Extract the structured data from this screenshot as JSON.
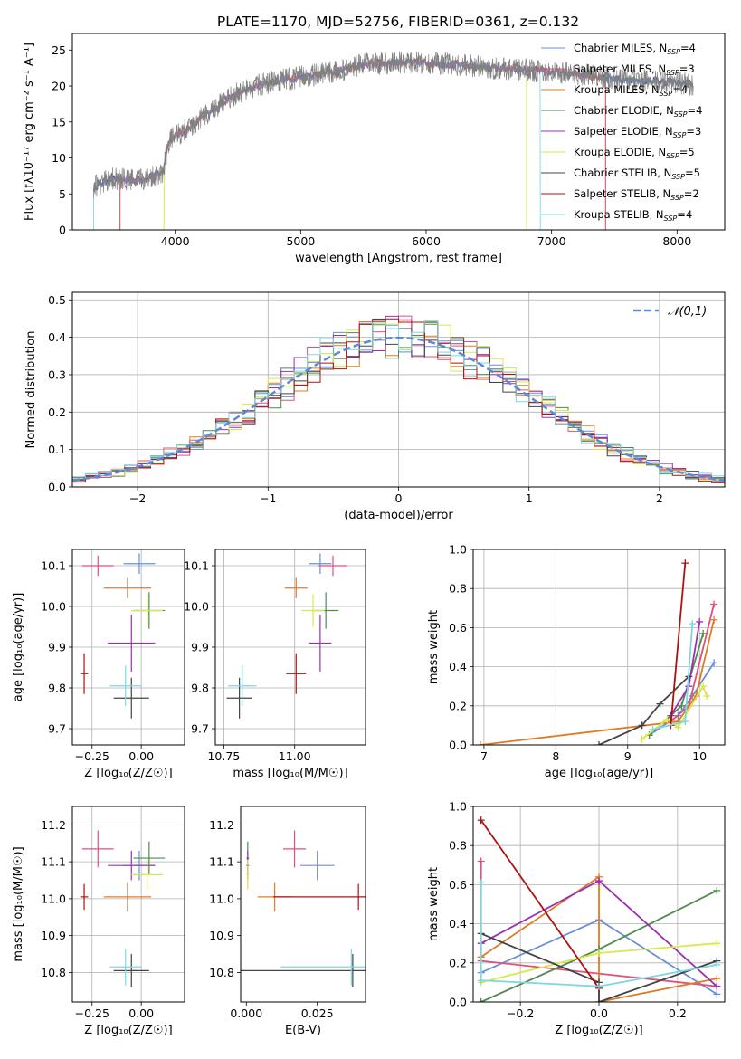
{
  "figure_title": "PLATE=1170, MJD=52756, FIBERID=0361, z=0.132",
  "colors": {
    "chabrier_miles": "#6a8fd8",
    "salpeter_miles": "#e0507a",
    "kroupa_miles": "#e07b24",
    "chabrier_elodie": "#4e8a50",
    "salpeter_elodie": "#9b30b0",
    "kroupa_elodie": "#d8e84a",
    "chabrier_stelib": "#444444",
    "salpeter_stelib": "#b01010",
    "kroupa_stelib": "#7fd6e0",
    "gauss": "#5b8ad6",
    "data_spectrum": "#808080"
  },
  "legend_spectrum": [
    {
      "model": "Chabrier MILES",
      "n": "4"
    },
    {
      "model": "Salpeter MILES",
      "n": "3"
    },
    {
      "model": "Kroupa MILES",
      "n": "4"
    },
    {
      "model": "Chabrier ELODIE",
      "n": "4"
    },
    {
      "model": "Salpeter ELODIE",
      "n": "3"
    },
    {
      "model": "Kroupa ELODIE",
      "n": "5"
    },
    {
      "model": "Chabrier STELIB",
      "n": "5"
    },
    {
      "model": "Salpeter STELIB",
      "n": "2"
    },
    {
      "model": "Kroupa STELIB",
      "n": "4"
    }
  ],
  "legend_hist": "𝒩(0,1)",
  "chart_data": [
    {
      "type": "line",
      "id": "spectrum",
      "xlabel": "wavelength [Angstrom, rest frame]",
      "ylabel": "Flux [fλ10⁻¹⁷ erg cm⁻² s⁻¹ A⁻¹]",
      "xlim": [
        3180,
        8380
      ],
      "ylim": [
        0,
        27.3
      ],
      "xticks": [
        4000,
        5000,
        6000,
        7000,
        8000
      ],
      "yticks": [
        0,
        5,
        10,
        15,
        20,
        25
      ],
      "grid": false,
      "continuum_points": [
        [
          3350,
          6
        ],
        [
          3500,
          7.2
        ],
        [
          3700,
          6.8
        ],
        [
          3900,
          8
        ],
        [
          3950,
          12.5
        ],
        [
          4100,
          14
        ],
        [
          4300,
          16.8
        ],
        [
          4500,
          19
        ],
        [
          4700,
          20.3
        ],
        [
          4900,
          21
        ],
        [
          5100,
          21.5
        ],
        [
          5300,
          22
        ],
        [
          5500,
          23
        ],
        [
          5800,
          23.3
        ],
        [
          6100,
          23.2
        ],
        [
          6400,
          22.7
        ],
        [
          6700,
          22.3
        ],
        [
          7000,
          22
        ],
        [
          7300,
          21.5
        ],
        [
          7600,
          20.8
        ],
        [
          7900,
          20.6
        ],
        [
          8130,
          20.2
        ]
      ],
      "model_cutoffs": [
        {
          "series": "salpeter_miles",
          "range": [
            3560,
            7430
          ]
        },
        {
          "series": "kroupa_miles",
          "range": [
            3560,
            7430
          ]
        },
        {
          "series": "kroupa_elodie",
          "range": [
            3910,
            6800
          ]
        },
        {
          "series": "kroupa_stelib",
          "range": [
            3350,
            6910
          ]
        }
      ]
    },
    {
      "type": "histogram",
      "id": "residuals",
      "xlabel": "(data-model)/error",
      "ylabel": "Normed distribution",
      "xlim": [
        -2.5,
        2.5
      ],
      "ylim": [
        0,
        0.52
      ],
      "xticks": [
        -2,
        -1,
        0,
        1,
        2
      ],
      "yticks": [
        0.0,
        0.1,
        0.2,
        0.3,
        0.4,
        0.5
      ],
      "grid": true,
      "bin_width": 0.1,
      "reference_curve": "normal(0,1)"
    },
    {
      "type": "scatter",
      "id": "z_age",
      "xlabel": "Z [log₁₀(Z/Z☉)]",
      "ylabel": "age  [log₁₀(age/yr)]",
      "xlim": [
        -0.35,
        0.22
      ],
      "ylim": [
        9.66,
        10.14
      ],
      "xticks": [
        -0.25,
        0.0
      ],
      "yticks": [
        9.7,
        9.8,
        9.9,
        10.0,
        10.1
      ],
      "grid": true
    },
    {
      "type": "scatter",
      "id": "mass_age",
      "xlabel": "mass [log₁₀(M/M☉)]",
      "ylabel": "",
      "xlim": [
        10.72,
        11.25
      ],
      "ylim": [
        9.66,
        10.14
      ],
      "xticks": [
        10.75,
        11.0
      ],
      "yticks": [
        9.7,
        9.8,
        9.9,
        10.0,
        10.1
      ],
      "grid": true
    },
    {
      "type": "line",
      "id": "age_weight",
      "xlabel": "age  [log₁₀(age/yr)]",
      "ylabel": "mass weight",
      "xlim": [
        6.85,
        10.35
      ],
      "ylim": [
        0,
        1
      ],
      "xticks": [
        7,
        8,
        9,
        10
      ],
      "yticks": [
        0.0,
        0.2,
        0.4,
        0.6,
        0.8,
        1.0
      ],
      "grid": true
    },
    {
      "type": "scatter",
      "id": "z_mass",
      "xlabel": "Z [log₁₀(Z/Z☉)]",
      "ylabel": "mass [log₁₀(M/M☉)]",
      "xlim": [
        -0.35,
        0.22
      ],
      "ylim": [
        10.72,
        11.25
      ],
      "xticks": [
        -0.25,
        0.0
      ],
      "yticks": [
        10.8,
        10.9,
        11.0,
        11.1,
        11.2
      ],
      "grid": true
    },
    {
      "type": "scatter",
      "id": "ebv_mass",
      "xlabel": "E(B-V)",
      "ylabel": "",
      "xlim": [
        -0.002,
        0.042
      ],
      "ylim": [
        10.72,
        11.25
      ],
      "xticks": [
        0.0,
        0.025
      ],
      "yticks": [
        10.8,
        10.9,
        11.0,
        11.1,
        11.2
      ],
      "grid": false
    },
    {
      "type": "line",
      "id": "z_weight",
      "xlabel": "Z [log₁₀(Z/Z☉)]",
      "ylabel": "mass weight",
      "xlim": [
        -0.32,
        0.32
      ],
      "ylim": [
        0,
        1
      ],
      "xticks": [
        -0.2,
        0.0,
        0.2
      ],
      "yticks": [
        0.0,
        0.2,
        0.4,
        0.6,
        0.8,
        1.0
      ],
      "grid": true
    }
  ],
  "fits": [
    {
      "key": "chabrier_miles",
      "Z": -0.01,
      "Zerr": 0.08,
      "age": 10.105,
      "ageerr": 0.025,
      "mass": 11.09,
      "masserr": 0.04,
      "ebv": 0.025,
      "ebverr": 0.006
    },
    {
      "key": "salpeter_miles",
      "Z": -0.22,
      "Zerr": 0.08,
      "age": 10.1,
      "ageerr": 0.025,
      "mass": 11.135,
      "masserr": 0.05,
      "ebv": 0.017,
      "ebverr": 0.004
    },
    {
      "key": "kroupa_miles",
      "Z": -0.07,
      "Zerr": 0.12,
      "age": 10.045,
      "ageerr": 0.025,
      "mass": 11.005,
      "masserr": 0.04,
      "ebv": 0.01,
      "ebverr": 0.006
    },
    {
      "key": "chabrier_elodie",
      "Z": 0.04,
      "Zerr": 0.08,
      "age": 9.99,
      "ageerr": 0.045,
      "mass": 11.11,
      "masserr": 0.045,
      "ebv": 0.0005,
      "ebverr": 0.0005
    },
    {
      "key": "salpeter_elodie",
      "Z": -0.05,
      "Zerr": 0.12,
      "age": 9.91,
      "ageerr": 0.07,
      "mass": 11.09,
      "masserr": 0.04,
      "ebv": 0.0005,
      "ebverr": 0.0005
    },
    {
      "key": "kroupa_elodie",
      "Z": 0.03,
      "Zerr": 0.08,
      "age": 9.99,
      "ageerr": 0.04,
      "mass": 11.065,
      "masserr": 0.04,
      "ebv": 0.0005,
      "ebverr": 0.0005
    },
    {
      "key": "chabrier_stelib",
      "Z": -0.05,
      "Zerr": 0.09,
      "age": 9.775,
      "ageerr": 0.05,
      "mass": 10.805,
      "masserr": 0.045,
      "ebv": 0.0375,
      "ebverr": 0.05
    },
    {
      "key": "salpeter_stelib",
      "Z": -0.29,
      "Zerr": 0.02,
      "age": 9.835,
      "ageerr": 0.05,
      "mass": 11.005,
      "masserr": 0.035,
      "ebv": 0.0395,
      "ebverr": 0.03
    },
    {
      "key": "kroupa_stelib",
      "Z": -0.08,
      "Zerr": 0.08,
      "age": 9.805,
      "ageerr": 0.05,
      "mass": 10.815,
      "masserr": 0.05,
      "ebv": 0.037,
      "ebverr": 0.025
    }
  ],
  "age_weights": [
    {
      "key": "chabrier_miles",
      "pts": [
        [
          9.3,
          0.05
        ],
        [
          9.7,
          0.15
        ],
        [
          9.9,
          0.25
        ],
        [
          10.2,
          0.42
        ]
      ]
    },
    {
      "key": "salpeter_miles",
      "pts": [
        [
          9.6,
          0.12
        ],
        [
          9.85,
          0.2
        ],
        [
          10.2,
          0.72
        ]
      ]
    },
    {
      "key": "kroupa_miles",
      "pts": [
        [
          6.95,
          0.0
        ],
        [
          9.7,
          0.12
        ],
        [
          9.95,
          0.25
        ],
        [
          10.2,
          0.64
        ]
      ]
    },
    {
      "key": "chabrier_elodie",
      "pts": [
        [
          9.3,
          0.05
        ],
        [
          9.75,
          0.2
        ],
        [
          10.05,
          0.57
        ]
      ]
    },
    {
      "key": "salpeter_elodie",
      "pts": [
        [
          9.6,
          0.15
        ],
        [
          9.85,
          0.3
        ],
        [
          10.0,
          0.63
        ]
      ]
    },
    {
      "key": "kroupa_elodie",
      "pts": [
        [
          9.2,
          0.03
        ],
        [
          9.55,
          0.13
        ],
        [
          9.7,
          0.09
        ],
        [
          10.05,
          0.3
        ],
        [
          10.1,
          0.25
        ]
      ]
    },
    {
      "key": "chabrier_stelib",
      "pts": [
        [
          8.6,
          0.0
        ],
        [
          9.2,
          0.1
        ],
        [
          9.45,
          0.21
        ],
        [
          9.85,
          0.35
        ]
      ]
    },
    {
      "key": "salpeter_stelib",
      "pts": [
        [
          9.6,
          0.1
        ],
        [
          9.8,
          0.93
        ]
      ]
    },
    {
      "key": "kroupa_stelib",
      "pts": [
        [
          9.35,
          0.08
        ],
        [
          9.8,
          0.12
        ],
        [
          9.9,
          0.62
        ]
      ]
    }
  ],
  "z_weights": [
    {
      "key": "chabrier_miles",
      "pts": [
        [
          -0.3,
          0.15
        ],
        [
          0.0,
          0.42
        ],
        [
          0.3,
          0.04
        ]
      ]
    },
    {
      "key": "salpeter_miles",
      "pts": [
        [
          -0.3,
          0.72
        ],
        [
          -0.3,
          0.21
        ],
        [
          0.3,
          0.08
        ]
      ]
    },
    {
      "key": "kroupa_miles",
      "pts": [
        [
          -0.3,
          0.23
        ],
        [
          0.0,
          0.64
        ],
        [
          0.0,
          0.0
        ],
        [
          0.3,
          0.12
        ]
      ]
    },
    {
      "key": "chabrier_elodie",
      "pts": [
        [
          -0.3,
          0.0
        ],
        [
          0.0,
          0.27
        ],
        [
          0.3,
          0.57
        ]
      ]
    },
    {
      "key": "salpeter_elodie",
      "pts": [
        [
          -0.3,
          0.3
        ],
        [
          0.0,
          0.62
        ],
        [
          0.3,
          0.08
        ]
      ]
    },
    {
      "key": "kroupa_elodie",
      "pts": [
        [
          -0.3,
          0.1
        ],
        [
          0.0,
          0.25
        ],
        [
          0.3,
          0.3
        ]
      ]
    },
    {
      "key": "chabrier_stelib",
      "pts": [
        [
          -0.3,
          0.35
        ],
        [
          0.0,
          0.1
        ],
        [
          0.0,
          0.0
        ],
        [
          0.3,
          0.21
        ]
      ]
    },
    {
      "key": "salpeter_stelib",
      "pts": [
        [
          -0.3,
          0.93
        ],
        [
          0.0,
          0.07
        ]
      ]
    },
    {
      "key": "kroupa_stelib",
      "pts": [
        [
          -0.3,
          0.61
        ],
        [
          -0.3,
          0.11
        ],
        [
          0.0,
          0.08
        ],
        [
          0.3,
          0.19
        ]
      ]
    }
  ]
}
